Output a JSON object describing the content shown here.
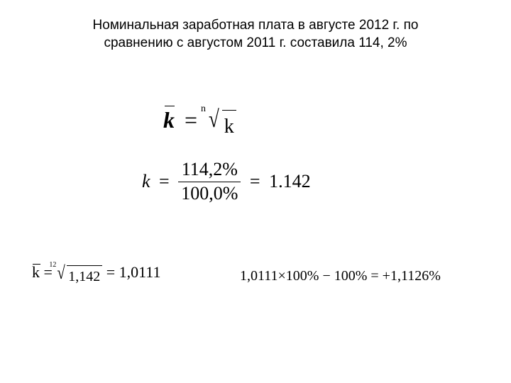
{
  "title": {
    "line1": "Номинальная заработная плата в августе 2012 г.  по",
    "line2": "сравнению с августом 2011 г. составила 114, 2%"
  },
  "formula1": {
    "lhs": "k",
    "root_index": "n",
    "radicand": "k"
  },
  "formula2": {
    "lhs": "k",
    "numerator": "114,2%",
    "denominator": "100,0%",
    "result": "1.142"
  },
  "formula3": {
    "lhs": "k",
    "root_index": "12",
    "radicand": "1,142",
    "result": "1,0111"
  },
  "formula4": {
    "text": "1,0111×100% − 100% = +1,1126%"
  },
  "colors": {
    "background": "#ffffff",
    "text": "#000000"
  }
}
